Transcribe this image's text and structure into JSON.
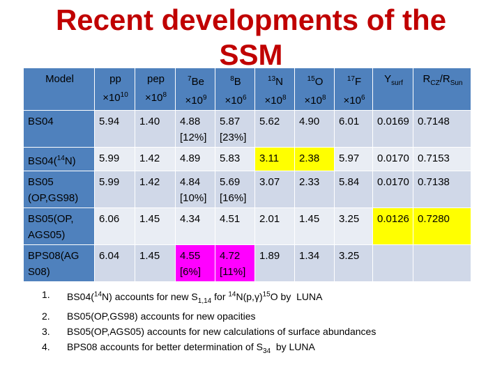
{
  "slide": {
    "title": "Recent developments of the SSM",
    "table": {
      "header": [
        {
          "html": "Model"
        },
        {
          "html": "pp<br>×10<sup>10</sup>"
        },
        {
          "html": "pep<br>×10<sup>8</sup>"
        },
        {
          "html": "<sup>7</sup>Be<br>×10<sup>9</sup>"
        },
        {
          "html": "<sup>8</sup>B<br>×10<sup>6</sup>"
        },
        {
          "html": "<sup>13</sup>N<br>×10<sup>8</sup>"
        },
        {
          "html": "<sup>15</sup>O<br>×10<sup>8</sup>"
        },
        {
          "html": "<sup>17</sup>F<br>×10<sup>6</sup>"
        },
        {
          "html": "Y<sub>surf</sub>"
        },
        {
          "html": "R<sub>CZ</sub>/R<sub>Sun</sub>"
        }
      ],
      "rows": [
        {
          "cells": [
            {
              "html": "BS04"
            },
            {
              "html": "5.94"
            },
            {
              "html": "1.40"
            },
            {
              "html": "4.88<br>[12%]"
            },
            {
              "html": "5.87<br>[23%]"
            },
            {
              "html": "5.62"
            },
            {
              "html": "4.90"
            },
            {
              "html": "6.01"
            },
            {
              "html": "0.0169"
            },
            {
              "html": "0.7148"
            }
          ]
        },
        {
          "cells": [
            {
              "html": "BS04(<sup>14</sup>N)"
            },
            {
              "html": "5.99"
            },
            {
              "html": "1.42"
            },
            {
              "html": "4.89"
            },
            {
              "html": "5.83"
            },
            {
              "html": "3.11",
              "hl": "yellow"
            },
            {
              "html": "2.38",
              "hl": "yellow"
            },
            {
              "html": "5.97"
            },
            {
              "html": "0.0170"
            },
            {
              "html": "0.7153"
            }
          ]
        },
        {
          "cells": [
            {
              "html": "BS05<br>(OP,GS98)"
            },
            {
              "html": "5.99"
            },
            {
              "html": "1.42"
            },
            {
              "html": "4.84<br>[10%]"
            },
            {
              "html": "5.69<br>[16%]"
            },
            {
              "html": "3.07"
            },
            {
              "html": "2.33"
            },
            {
              "html": "5.84"
            },
            {
              "html": "0.0170"
            },
            {
              "html": "0.7138"
            }
          ]
        },
        {
          "cells": [
            {
              "html": "BS05(OP,<br>AGS05)"
            },
            {
              "html": "6.06"
            },
            {
              "html": "1.45"
            },
            {
              "html": "4.34"
            },
            {
              "html": "4.51"
            },
            {
              "html": "2.01"
            },
            {
              "html": "1.45"
            },
            {
              "html": "3.25"
            },
            {
              "html": "0.0126",
              "hl": "yellow"
            },
            {
              "html": "0.7280",
              "hl": "yellow"
            }
          ]
        },
        {
          "cells": [
            {
              "html": "BPS08(AG<br>S08)"
            },
            {
              "html": "6.04"
            },
            {
              "html": "1.45"
            },
            {
              "html": "4.55<br>[6%]",
              "hl": "magenta"
            },
            {
              "html": "4.72<br>[11%]",
              "hl": "magenta"
            },
            {
              "html": "1.89"
            },
            {
              "html": "1.34"
            },
            {
              "html": "3.25"
            },
            {
              "html": ""
            },
            {
              "html": ""
            }
          ]
        }
      ]
    },
    "notes": [
      {
        "num": "1.",
        "html": "BS04(<sup>14</sup>N) accounts for new S<sub>1,14</sub> for <sup>14</sup>N(p,γ)<sup>15</sup>O by &nbsp;LUNA"
      },
      {
        "num": "2.",
        "html": "BS05(OP,GS98) accounts for new opacities"
      },
      {
        "num": "3.",
        "html": "BS05(OP,AGS05) accounts for new calculations of surface abundances"
      },
      {
        "num": "4.",
        "html": "BPS08 accounts for better determination of S<sub>34</sub> &nbsp;by LUNA"
      }
    ]
  }
}
